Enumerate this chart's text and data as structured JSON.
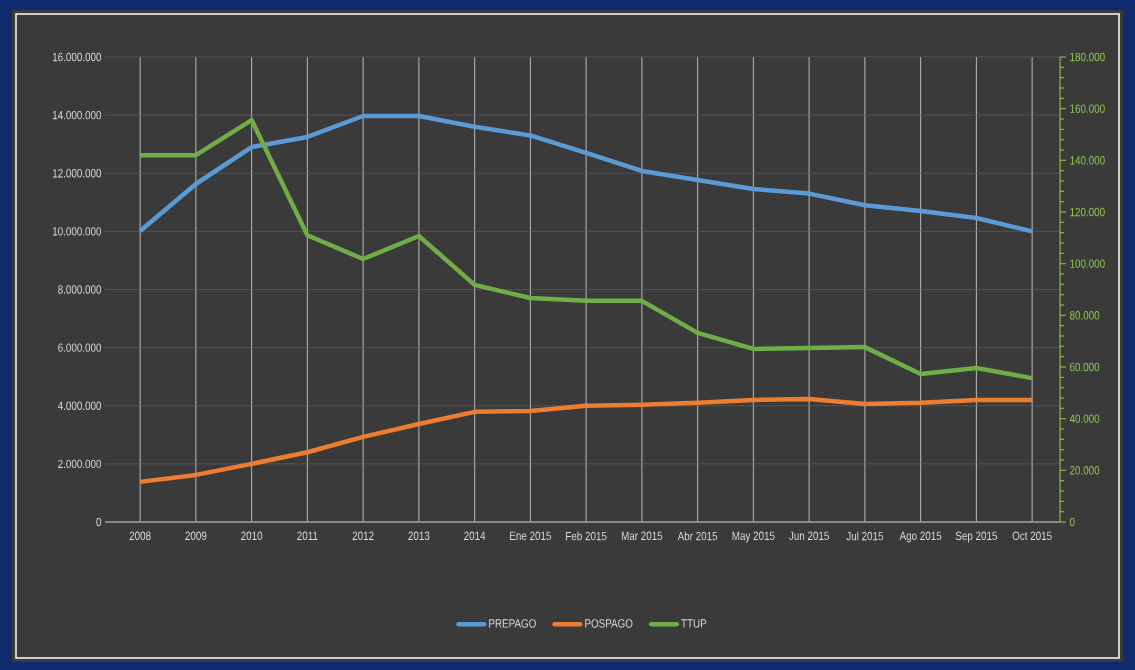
{
  "chart_data": {
    "type": "line",
    "categories": [
      "2008",
      "2009",
      "2010",
      "2011",
      "2012",
      "2013",
      "2014",
      "Ene 2015",
      "Feb 2015",
      "Mar 2015",
      "Abr 2015",
      "May 2015",
      "Jun 2015",
      "Jul 2015",
      "Ago 2015",
      "Sep 2015",
      "Oct 2015"
    ],
    "series": [
      {
        "name": "PREPAGO",
        "color": "#5b9bd5",
        "values": [
          10010000,
          11630000,
          12900000,
          13250000,
          13970000,
          13970000,
          13600000,
          13300000,
          12700000,
          12080000,
          11770000,
          11460000,
          11300000,
          10900000,
          10700000,
          10460000,
          10000000
        ]
      },
      {
        "name": "POSPAGO",
        "color": "#ed7d31",
        "values": [
          1380000,
          1620000,
          2000000,
          2400000,
          2930000,
          3370000,
          3790000,
          3820000,
          4000000,
          4030000,
          4100000,
          4200000,
          4230000,
          4060000,
          4100000,
          4200000,
          4200000
        ]
      },
      {
        "name": "TTUP",
        "color": "#70ad47",
        "axis": "y2",
        "values": [
          142000,
          142000,
          155600,
          111000,
          101800,
          110700,
          91800,
          86700,
          85600,
          85600,
          73200,
          67000,
          67400,
          67700,
          57300,
          59600,
          55700
        ]
      }
    ],
    "ylim": [
      0,
      16000000
    ],
    "yticks": [
      0,
      {
        "value": 2000000,
        "label": "2.000.000"
      },
      {
        "value": 4000000,
        "label": "4.000.000"
      },
      {
        "value": 6000000,
        "label": "6.000.000"
      },
      {
        "value": 8000000,
        "label": "8.000.000"
      },
      {
        "value": 10000000,
        "label": "10.000.000"
      },
      {
        "value": 12000000,
        "label": "12.000.000"
      },
      {
        "value": 14000000,
        "label": "14.000.000"
      },
      {
        "value": 16000000,
        "label": "16.000.000"
      }
    ],
    "y2lim": [
      0,
      180000
    ],
    "y2ticks": [
      0,
      {
        "value": 20000,
        "label": "20.000"
      },
      {
        "value": 40000,
        "label": "40.000"
      },
      {
        "value": 60000,
        "label": "60.000"
      },
      {
        "value": 80000,
        "label": "80.000"
      },
      {
        "value": 100000,
        "label": "100.000"
      },
      {
        "value": 120000,
        "label": "120.000"
      },
      {
        "value": 140000,
        "label": "140.000"
      },
      {
        "value": 160000,
        "label": "160.000"
      },
      {
        "value": 180000,
        "label": "180.000"
      }
    ],
    "grid": true,
    "legend": "bottom"
  }
}
